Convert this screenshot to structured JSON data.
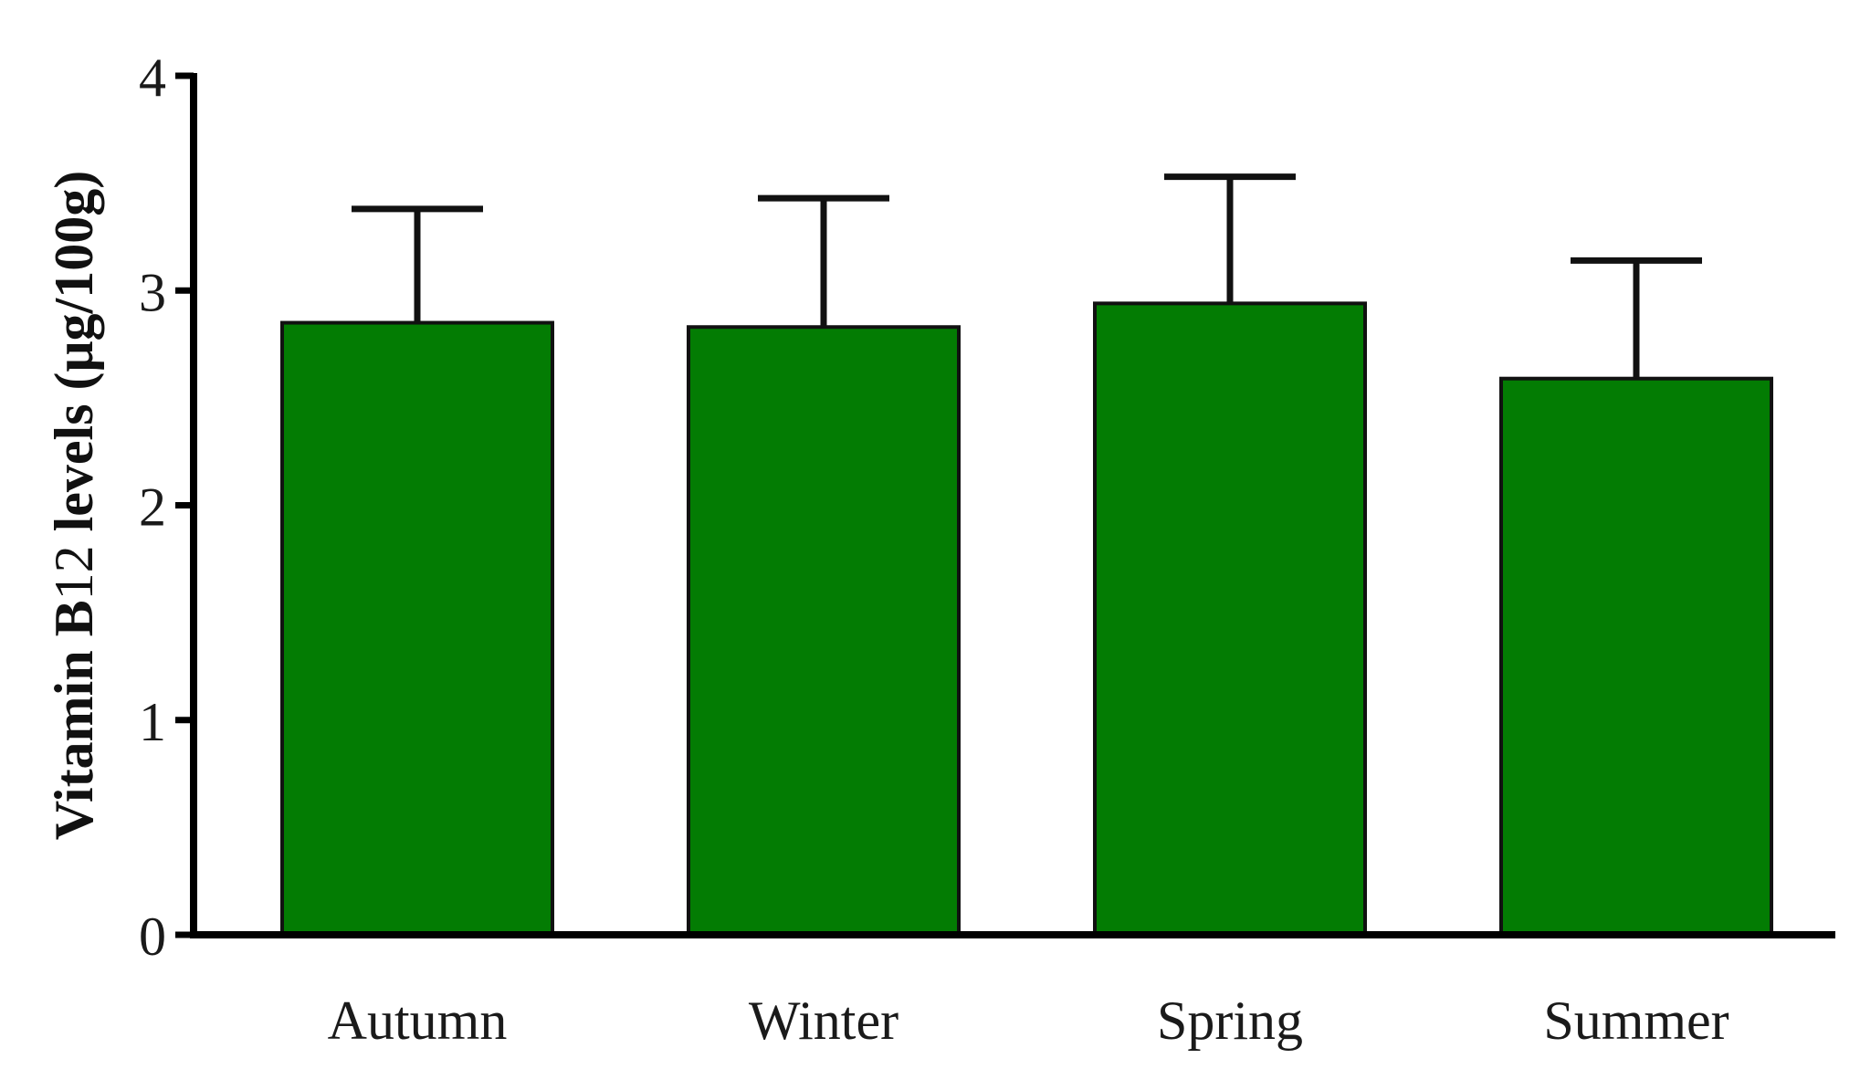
{
  "chart_data": {
    "type": "bar",
    "title": "",
    "categories": [
      "Autumn",
      "Winter",
      "Spring",
      "Summer"
    ],
    "values": [
      2.85,
      2.83,
      2.94,
      2.59
    ],
    "error_upper": [
      3.38,
      3.43,
      3.53,
      3.14
    ],
    "ylabel": {
      "prefix": "Vitamin B",
      "subscript": "12",
      "suffix": " levels (μg/100g)"
    },
    "xlabel": "",
    "ylim": [
      0,
      4
    ],
    "yticks": [
      "0",
      "1",
      "2",
      "3",
      "4"
    ],
    "grid": false,
    "bar_color": "#037c03",
    "axis_color": "#000000"
  }
}
